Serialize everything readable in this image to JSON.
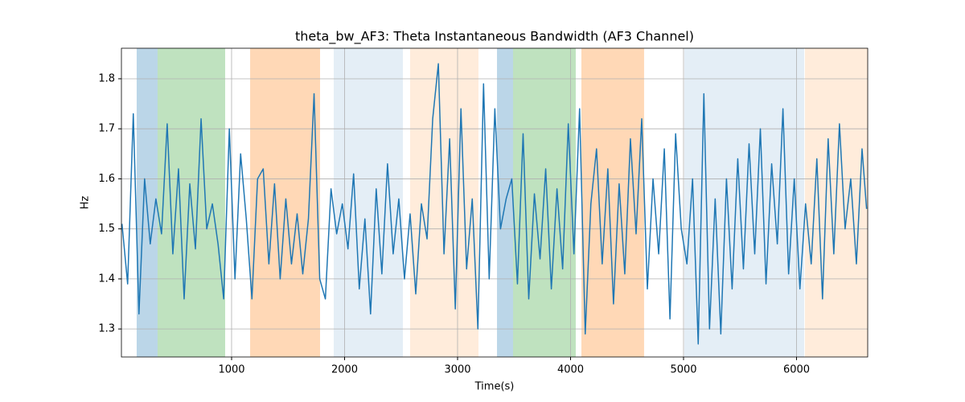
{
  "chart_data": {
    "type": "line",
    "title": "theta_bw_AF3: Theta Instantaneous Bandwidth (AF3 Channel)",
    "x_label": "Time(s)",
    "y_label": "Hz",
    "x": [
      30,
      80,
      130,
      180,
      230,
      280,
      330,
      380,
      430,
      480,
      530,
      580,
      630,
      680,
      730,
      780,
      830,
      880,
      930,
      980,
      1030,
      1080,
      1130,
      1180,
      1230,
      1280,
      1330,
      1380,
      1430,
      1480,
      1530,
      1580,
      1630,
      1680,
      1730,
      1780,
      1830,
      1880,
      1930,
      1980,
      2030,
      2080,
      2130,
      2180,
      2230,
      2280,
      2330,
      2380,
      2430,
      2480,
      2530,
      2580,
      2630,
      2680,
      2730,
      2780,
      2830,
      2880,
      2930,
      2980,
      3030,
      3080,
      3130,
      3180,
      3230,
      3280,
      3330,
      3380,
      3430,
      3480,
      3530,
      3580,
      3630,
      3680,
      3730,
      3780,
      3830,
      3880,
      3930,
      3980,
      4030,
      4080,
      4130,
      4180,
      4230,
      4280,
      4330,
      4380,
      4430,
      4480,
      4530,
      4580,
      4630,
      4680,
      4730,
      4780,
      4830,
      4880,
      4930,
      4980,
      5030,
      5080,
      5130,
      5180,
      5230,
      5280,
      5330,
      5380,
      5430,
      5480,
      5530,
      5580,
      5630,
      5680,
      5730,
      5780,
      5830,
      5880,
      5930,
      5980,
      6030,
      6080,
      6130,
      6180,
      6230,
      6280,
      6330,
      6380,
      6430,
      6480,
      6530,
      6580,
      6620
    ],
    "series": [
      {
        "name": "theta_bw_AF3",
        "color": "#1f77b4",
        "values": [
          1.51,
          1.39,
          1.73,
          1.33,
          1.6,
          1.47,
          1.56,
          1.49,
          1.71,
          1.45,
          1.62,
          1.36,
          1.59,
          1.46,
          1.72,
          1.5,
          1.55,
          1.47,
          1.36,
          1.7,
          1.4,
          1.65,
          1.52,
          1.36,
          1.6,
          1.62,
          1.43,
          1.59,
          1.4,
          1.56,
          1.43,
          1.53,
          1.41,
          1.52,
          1.77,
          1.4,
          1.36,
          1.58,
          1.49,
          1.55,
          1.46,
          1.61,
          1.38,
          1.52,
          1.33,
          1.58,
          1.41,
          1.63,
          1.45,
          1.56,
          1.4,
          1.53,
          1.37,
          1.55,
          1.48,
          1.72,
          1.83,
          1.45,
          1.68,
          1.34,
          1.74,
          1.42,
          1.56,
          1.3,
          1.79,
          1.4,
          1.74,
          1.5,
          1.56,
          1.6,
          1.39,
          1.69,
          1.36,
          1.57,
          1.44,
          1.62,
          1.38,
          1.58,
          1.42,
          1.71,
          1.45,
          1.74,
          1.29,
          1.55,
          1.66,
          1.43,
          1.62,
          1.35,
          1.59,
          1.41,
          1.68,
          1.49,
          1.72,
          1.38,
          1.6,
          1.45,
          1.66,
          1.32,
          1.69,
          1.5,
          1.43,
          1.6,
          1.27,
          1.77,
          1.3,
          1.56,
          1.29,
          1.6,
          1.38,
          1.64,
          1.42,
          1.67,
          1.45,
          1.7,
          1.39,
          1.63,
          1.47,
          1.74,
          1.41,
          1.6,
          1.38,
          1.55,
          1.43,
          1.64,
          1.36,
          1.68,
          1.45,
          1.71,
          1.5,
          1.6,
          1.43,
          1.66,
          1.54
        ]
      }
    ],
    "spans": [
      {
        "x0": 160,
        "x1": 345,
        "color": "rgba(31,119,180,0.3)"
      },
      {
        "x0": 345,
        "x1": 943,
        "color": "rgba(44,160,44,0.3)"
      },
      {
        "x0": 1164,
        "x1": 1783,
        "color": "rgba(255,127,14,0.3)"
      },
      {
        "x0": 1904,
        "x1": 2516,
        "color": "rgba(31,119,180,0.12)"
      },
      {
        "x0": 2580,
        "x1": 3185,
        "color": "rgba(255,127,14,0.15)"
      },
      {
        "x0": 3349,
        "x1": 3491,
        "color": "rgba(31,119,180,0.3)"
      },
      {
        "x0": 3491,
        "x1": 4046,
        "color": "rgba(44,160,44,0.3)"
      },
      {
        "x0": 4096,
        "x1": 4651,
        "color": "rgba(255,127,14,0.3)"
      },
      {
        "x0": 5007,
        "x1": 6068,
        "color": "rgba(31,119,180,0.12)"
      },
      {
        "x0": 6075,
        "x1": 6630,
        "color": "rgba(255,127,14,0.15)"
      }
    ],
    "xlim": [
      25,
      6630
    ],
    "ylim": [
      1.244,
      1.861
    ],
    "xticks": [
      1000,
      2000,
      3000,
      4000,
      5000,
      6000
    ],
    "yticks": [
      1.3,
      1.4,
      1.5,
      1.6,
      1.7,
      1.8
    ],
    "grid": true
  }
}
